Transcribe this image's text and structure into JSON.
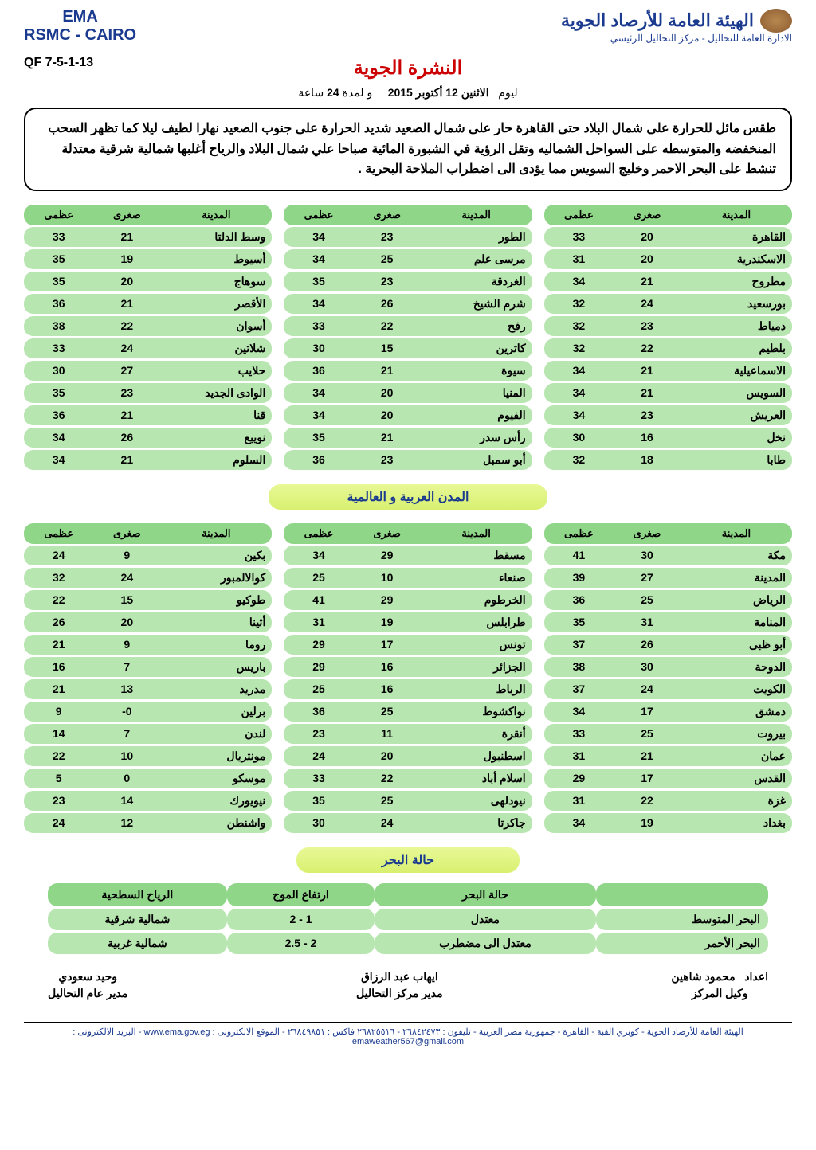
{
  "header": {
    "left_line1": "EMA",
    "left_line2": "RSMC - CAIRO",
    "right_org": "الهيئة العامة للأرصاد الجوية",
    "right_sub": "الادارة العامة للتحاليل - مركز التحاليل الرئيسي"
  },
  "ref": "QF 7-5-1-13",
  "main_title": "النشرة الجوية",
  "date_prefix": "ليوم",
  "date_value": "الاثنين 12 أكتوبر 2015",
  "duration_prefix": "و لمدة",
  "duration_value": "24",
  "duration_suffix": "ساعة",
  "summary": "طقس مائل للحرارة على شمال البلاد حتى القاهرة حار على شمال الصعيد شديد الحرارة على جنوب الصعيد نهارا لطيف ليلا كما تظهر السحب المنخفضه والمتوسطه على السواحل الشماليه وتقل الرؤية في الشبورة المائية صباحا علي شمال البلاد والرياح أغلبها شمالية شرقية معتدلة تنشط على البحر الاحمر وخليج السويس مما يؤدى الى اضطراب الملاحة البحرية .",
  "headers": {
    "city": "المدينة",
    "min": "صغرى",
    "max": "عظمى"
  },
  "table1": [
    {
      "city": "القاهرة",
      "min": "20",
      "max": "33"
    },
    {
      "city": "الاسكندرية",
      "min": "20",
      "max": "31"
    },
    {
      "city": "مطروح",
      "min": "21",
      "max": "34"
    },
    {
      "city": "بورسعيد",
      "min": "24",
      "max": "32"
    },
    {
      "city": "دمياط",
      "min": "23",
      "max": "32"
    },
    {
      "city": "بلطيم",
      "min": "22",
      "max": "32"
    },
    {
      "city": "الاسماعيلية",
      "min": "21",
      "max": "34"
    },
    {
      "city": "السويس",
      "min": "21",
      "max": "34"
    },
    {
      "city": "العريش",
      "min": "23",
      "max": "34"
    },
    {
      "city": "نخل",
      "min": "16",
      "max": "30"
    },
    {
      "city": "طابا",
      "min": "18",
      "max": "32"
    }
  ],
  "table2": [
    {
      "city": "الطور",
      "min": "23",
      "max": "34"
    },
    {
      "city": "مرسى علم",
      "min": "25",
      "max": "34"
    },
    {
      "city": "الغردقة",
      "min": "23",
      "max": "35"
    },
    {
      "city": "شرم الشيخ",
      "min": "26",
      "max": "34"
    },
    {
      "city": "رفح",
      "min": "22",
      "max": "33"
    },
    {
      "city": "كاترين",
      "min": "15",
      "max": "30"
    },
    {
      "city": "سيوة",
      "min": "21",
      "max": "36"
    },
    {
      "city": "المنيا",
      "min": "20",
      "max": "34"
    },
    {
      "city": "الفيوم",
      "min": "20",
      "max": "34"
    },
    {
      "city": "رأس سدر",
      "min": "21",
      "max": "35"
    },
    {
      "city": "أبو سمبل",
      "min": "23",
      "max": "36"
    }
  ],
  "table3": [
    {
      "city": "وسط الدلتا",
      "min": "21",
      "max": "33"
    },
    {
      "city": "أسيوط",
      "min": "19",
      "max": "35"
    },
    {
      "city": "سوهاج",
      "min": "20",
      "max": "35"
    },
    {
      "city": "الأقصر",
      "min": "21",
      "max": "36"
    },
    {
      "city": "أسوان",
      "min": "22",
      "max": "38"
    },
    {
      "city": "شلاتين",
      "min": "24",
      "max": "33"
    },
    {
      "city": "حلايب",
      "min": "27",
      "max": "30"
    },
    {
      "city": "الوادى الجديد",
      "min": "23",
      "max": "35"
    },
    {
      "city": "قنا",
      "min": "21",
      "max": "36"
    },
    {
      "city": "نويبع",
      "min": "26",
      "max": "34"
    },
    {
      "city": "السلوم",
      "min": "21",
      "max": "34"
    }
  ],
  "section_world": "المدن العربية و العالمية",
  "world1": [
    {
      "city": "مكة",
      "min": "30",
      "max": "41"
    },
    {
      "city": "المدينة",
      "min": "27",
      "max": "39"
    },
    {
      "city": "الرياض",
      "min": "25",
      "max": "36"
    },
    {
      "city": "المنامة",
      "min": "31",
      "max": "35"
    },
    {
      "city": "أبو ظبى",
      "min": "26",
      "max": "37"
    },
    {
      "city": "الدوحة",
      "min": "30",
      "max": "38"
    },
    {
      "city": "الكويت",
      "min": "24",
      "max": "37"
    },
    {
      "city": "دمشق",
      "min": "17",
      "max": "34"
    },
    {
      "city": "بيروت",
      "min": "25",
      "max": "33"
    },
    {
      "city": "عمان",
      "min": "21",
      "max": "31"
    },
    {
      "city": "القدس",
      "min": "17",
      "max": "29"
    },
    {
      "city": "غزة",
      "min": "22",
      "max": "31"
    },
    {
      "city": "بغداد",
      "min": "19",
      "max": "34"
    }
  ],
  "world2": [
    {
      "city": "مسقط",
      "min": "29",
      "max": "34"
    },
    {
      "city": "صنعاء",
      "min": "10",
      "max": "25"
    },
    {
      "city": "الخرطوم",
      "min": "29",
      "max": "41"
    },
    {
      "city": "طرابلس",
      "min": "19",
      "max": "31"
    },
    {
      "city": "تونس",
      "min": "17",
      "max": "29"
    },
    {
      "city": "الجزائر",
      "min": "16",
      "max": "29"
    },
    {
      "city": "الرباط",
      "min": "16",
      "max": "25"
    },
    {
      "city": "نواكشوط",
      "min": "25",
      "max": "36"
    },
    {
      "city": "أنقرة",
      "min": "11",
      "max": "23"
    },
    {
      "city": "اسطنبول",
      "min": "20",
      "max": "24"
    },
    {
      "city": "اسلام أباد",
      "min": "22",
      "max": "33"
    },
    {
      "city": "نيودلهى",
      "min": "25",
      "max": "35"
    },
    {
      "city": "جاكرتا",
      "min": "24",
      "max": "30"
    }
  ],
  "world3": [
    {
      "city": "بكين",
      "min": "9",
      "max": "24"
    },
    {
      "city": "كوالالمبور",
      "min": "24",
      "max": "32"
    },
    {
      "city": "طوكيو",
      "min": "15",
      "max": "22"
    },
    {
      "city": "أثينا",
      "min": "20",
      "max": "26"
    },
    {
      "city": "روما",
      "min": "9",
      "max": "21"
    },
    {
      "city": "باريس",
      "min": "7",
      "max": "16"
    },
    {
      "city": "مدريد",
      "min": "13",
      "max": "21"
    },
    {
      "city": "برلين",
      "min": "0-",
      "max": "9"
    },
    {
      "city": "لندن",
      "min": "7",
      "max": "14"
    },
    {
      "city": "مونتريال",
      "min": "10",
      "max": "22"
    },
    {
      "city": "موسكو",
      "min": "0",
      "max": "5"
    },
    {
      "city": "نيويورك",
      "min": "14",
      "max": "23"
    },
    {
      "city": "واشنطن",
      "min": "12",
      "max": "24"
    }
  ],
  "section_sea": "حالة البحر",
  "sea_headers": {
    "sea": "",
    "state": "حالة البحر",
    "wave": "ارتفاع الموج",
    "wind": "الرياح السطحية"
  },
  "sea_rows": [
    {
      "sea": "البحر المتوسط",
      "state": "معتدل",
      "wave": "1 - 2",
      "wind": "شمالية شرقية"
    },
    {
      "sea": "البحر الأحمر",
      "state": "معتدل الى مضطرب",
      "wave": "2 - 2.5",
      "wind": "شمالية غربية"
    }
  ],
  "sig1": {
    "label": "اعداد",
    "name": "محمود شاهين",
    "title": "وكيل المركز"
  },
  "sig2": {
    "name": "ايهاب عبد الرزاق",
    "title": "مدير مركز التحاليل"
  },
  "sig3": {
    "name": "وحيد سعودي",
    "title": "مدير عام التحاليل"
  },
  "footer": "الهيئة العامة للأرصاد الجوية - كوبري القبة - القاهرة - جمهورية مصر العربية - تليفون : ٢٦٨٤٢٤٧٣ - ٢٦٨٢٥٥١٦ فاكس : ٢٦٨٤٩٨٥١ - الموقع الالكترونى : www.ema.gov.eg - البريد الالكترونى : emaweather567@gmail.com"
}
